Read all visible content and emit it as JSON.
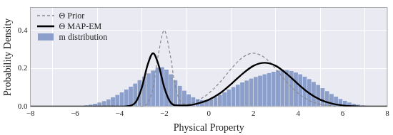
{
  "chart_data": {
    "type": "histogram",
    "x_label": "Physical Property",
    "y_label": "Probability Density",
    "xlim": [
      -8,
      8
    ],
    "xticks": [
      {
        "value": -8,
        "label": "−8"
      },
      {
        "value": -6,
        "label": "−6"
      },
      {
        "value": -4,
        "label": "−4"
      },
      {
        "value": -2,
        "label": "−2"
      },
      0,
      2,
      4,
      6,
      8
    ],
    "ylim": [
      0,
      0.52
    ],
    "yticks": [
      {
        "value": 0,
        "label": "0.0"
      },
      0.2,
      0.4
    ],
    "grid": true,
    "legend": "upper left",
    "series": [
      {
        "name": "Θ Prior",
        "type": "line",
        "color": "#888888",
        "line_style": "dashed",
        "x": [
          -8,
          -4,
          -3.5,
          -3,
          -2.75,
          -2.5,
          -2.25,
          -2,
          -1.75,
          -1.5,
          -1.25,
          -1,
          -0.5,
          0,
          0.5,
          1,
          1.5,
          2,
          2.5,
          3,
          3.5,
          4,
          4.5,
          5,
          5.5,
          6,
          7,
          8
        ],
        "values": [
          0,
          0,
          0,
          0.001,
          0.018,
          0.1,
          0.283,
          0.4,
          0.283,
          0.104,
          0.025,
          0.013,
          0.032,
          0.07,
          0.128,
          0.198,
          0.257,
          0.28,
          0.257,
          0.198,
          0.128,
          0.07,
          0.032,
          0.012,
          0.004,
          0,
          0,
          0
        ]
      },
      {
        "name": "Θ MAP-EM",
        "type": "line",
        "color": "#000000",
        "line_style": "solid",
        "x": [
          -8,
          -4,
          -3.5,
          -3.25,
          -3,
          -2.75,
          -2.5,
          -2.25,
          -2,
          -1.75,
          -1.5,
          -1,
          -0.5,
          0,
          0.5,
          1,
          1.5,
          2,
          2.5,
          3,
          3.5,
          4,
          4.5,
          5,
          5.5,
          6,
          6.5,
          7,
          8
        ],
        "values": [
          0,
          0,
          0.005,
          0.028,
          0.101,
          0.217,
          0.28,
          0.217,
          0.101,
          0.028,
          0.007,
          0.006,
          0.016,
          0.036,
          0.07,
          0.118,
          0.171,
          0.214,
          0.23,
          0.214,
          0.171,
          0.118,
          0.07,
          0.036,
          0.016,
          0.006,
          0.002,
          0,
          0
        ]
      },
      {
        "name": "m distribution",
        "type": "histogram",
        "color": "#8c9fcb",
        "bins": [
          -6.0,
          -5.8,
          -5.6,
          -5.4,
          -5.2,
          -5.0,
          -4.8,
          -4.6,
          -4.4,
          -4.2,
          -4.0,
          -3.8,
          -3.6,
          -3.4,
          -3.2,
          -3.0,
          -2.8,
          -2.6,
          -2.4,
          -2.2,
          -2.0,
          -1.8,
          -1.6,
          -1.4,
          -1.2,
          -1.0,
          -0.8,
          -0.6,
          -0.4,
          -0.2,
          0.0,
          0.2,
          0.4,
          0.6,
          0.8,
          1.0,
          1.2,
          1.4,
          1.6,
          1.8,
          2.0,
          2.2,
          2.4,
          2.6,
          2.8,
          3.0,
          3.2,
          3.4,
          3.6,
          3.8,
          4.0,
          4.2,
          4.4,
          4.6,
          4.8,
          5.0,
          5.2,
          5.4,
          5.6,
          5.8,
          6.0,
          6.2,
          6.4,
          6.6,
          6.8,
          7.0,
          7.2,
          7.4,
          7.6
        ],
        "values": [
          0.002,
          0.004,
          0.007,
          0.011,
          0.016,
          0.022,
          0.03,
          0.039,
          0.05,
          0.062,
          0.075,
          0.09,
          0.105,
          0.122,
          0.14,
          0.158,
          0.175,
          0.19,
          0.205,
          0.208,
          0.195,
          0.17,
          0.14,
          0.11,
          0.085,
          0.065,
          0.05,
          0.04,
          0.035,
          0.035,
          0.04,
          0.05,
          0.062,
          0.075,
          0.09,
          0.103,
          0.115,
          0.127,
          0.138,
          0.148,
          0.156,
          0.163,
          0.17,
          0.177,
          0.183,
          0.19,
          0.195,
          0.193,
          0.188,
          0.18,
          0.17,
          0.158,
          0.145,
          0.13,
          0.114,
          0.098,
          0.082,
          0.067,
          0.053,
          0.041,
          0.031,
          0.022,
          0.016,
          0.011,
          0.007,
          0.005,
          0.003,
          0.002
        ]
      }
    ]
  }
}
